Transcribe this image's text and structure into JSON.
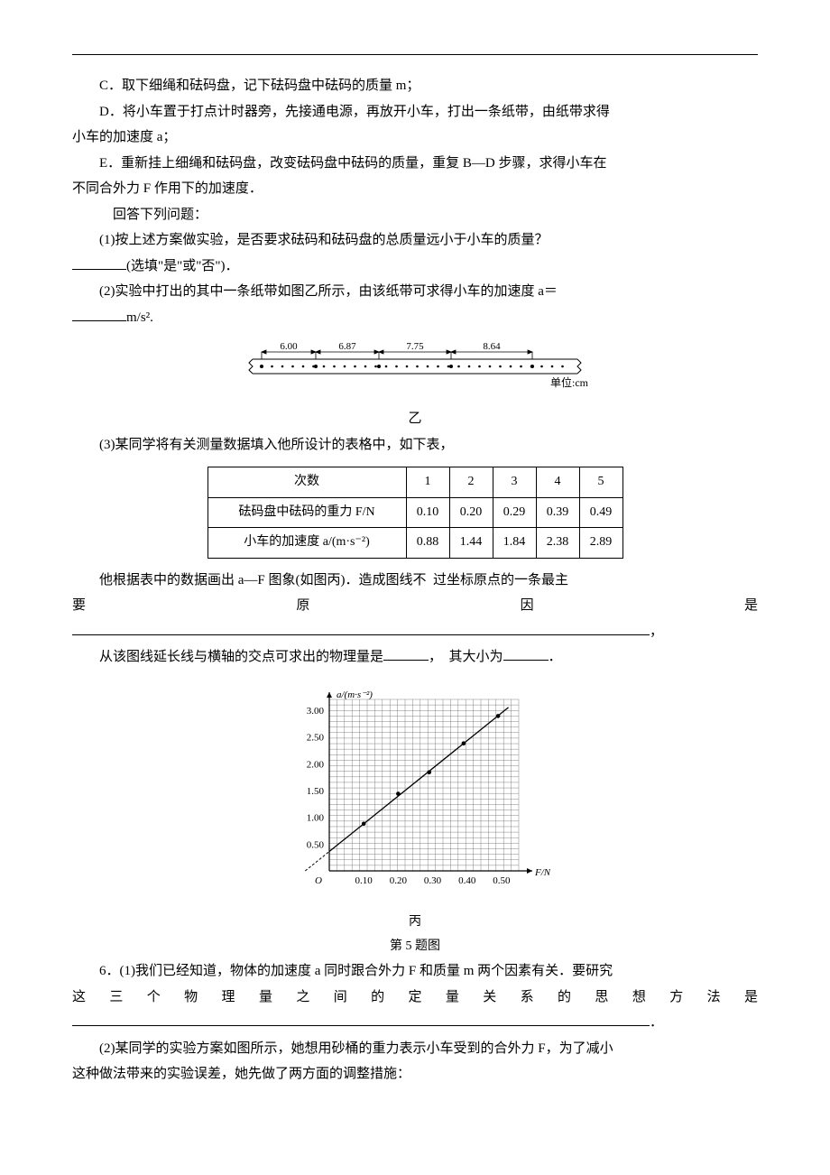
{
  "step_c": "C．取下细绳和砝码盘，记下砝码盘中砝码的质量 m；",
  "step_d1": "D．将小车置于打点计时器旁，先接通电源，再放开小车，打出一条纸带，由纸带求得",
  "step_d2": "小车的加速度 a；",
  "step_e1": "E．重新挂上细绳和砝码盘，改变砝码盘中砝码的质量，重复 B—D 步骤，求得小车在",
  "step_e2": "不同合外力 F 作用下的加速度．",
  "answer_prompt": "回答下列问题：",
  "q1_line": "(1)按上述方案做实验，是否要求砝码和砝码盘的总质量远小于小车的质量？",
  "q1_fill": "(选填\"是\"或\"否\")．",
  "q2_line": "(2)实验中打出的其中一条纸带如图乙所示，由该纸带可求得小车的加速度 a＝",
  "q2_unit": "m/s².",
  "tape": {
    "segments": [
      "6.00",
      "6.87",
      "7.75",
      "8.64"
    ],
    "unit_label": "单位:cm",
    "caption": "乙"
  },
  "q3_intro": "(3)某同学将有关测量数据填入他所设计的表格中，如下表，",
  "table": {
    "header_count": "次数",
    "header_force": "砝码盘中砝码的重力 F/N",
    "header_accel": "小车的加速度 a/(m·s⁻²)",
    "cols": [
      "1",
      "2",
      "3",
      "4",
      "5"
    ],
    "force": [
      "0.10",
      "0.20",
      "0.29",
      "0.39",
      "0.49"
    ],
    "accel": [
      "0.88",
      "1.44",
      "1.84",
      "2.38",
      "2.89"
    ]
  },
  "q3_line1_a": "他根据表中的数据画出 a—F 图象(如图丙)．造成图线不",
  "q3_line1_b": "过坐标原点的一条最主",
  "q3_line2": "要原因是",
  "q3_blank_tail": "，",
  "q3_line3_a": "从该图线延长线与横轴的交点可求出的物理量是",
  "q3_line3_b": "，",
  "q3_line3_c": "其大小为",
  "q3_line3_d": "．",
  "graph": {
    "y_label": "a/(m·s⁻²)",
    "x_label": "F/N",
    "y_ticks": [
      "0.50",
      "1.00",
      "1.50",
      "2.00",
      "2.50",
      "3.00"
    ],
    "x_ticks": [
      "0.10",
      "0.20",
      "0.30",
      "0.40",
      "0.50"
    ],
    "y_max": 3.2,
    "x_max": 0.55,
    "points": [
      {
        "x": 0.1,
        "y": 0.88
      },
      {
        "x": 0.2,
        "y": 1.44
      },
      {
        "x": 0.29,
        "y": 1.84
      },
      {
        "x": 0.39,
        "y": 2.38
      },
      {
        "x": 0.49,
        "y": 2.89
      }
    ],
    "line": {
      "x1": -0.07,
      "y1": 0,
      "x2": 0.52,
      "y2": 3.05
    },
    "axis_color": "#000",
    "grid_color": "#000",
    "grid_width": 0.4,
    "caption1": "丙",
    "caption2": "第 5 题图"
  },
  "q6_line1_a": "6．(1)我们已经知道，物体的加速度 a 同时跟合外力 F 和质量 m 两个因素有关．要研究",
  "q6_line2": "这三个物理量之间的定量关系的思想方法是",
  "q6_tail": "．",
  "q6_2_line1": "(2)某同学的实验方案如图所示，她想用砂桶的重力表示小车受到的合外力 F，为了减小",
  "q6_2_line2": "这种做法带来的实验误差，她先做了两方面的调整措施："
}
